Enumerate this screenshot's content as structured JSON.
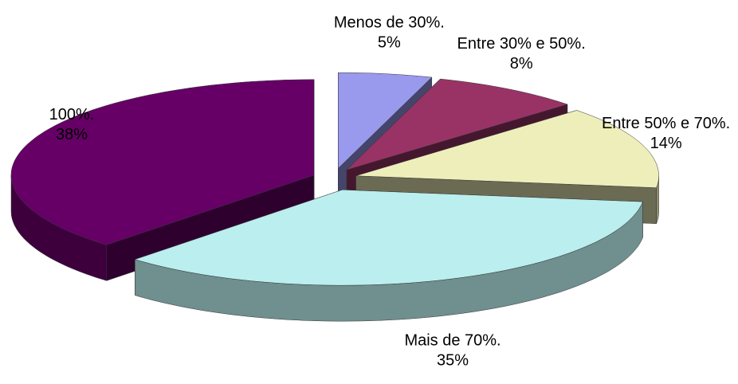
{
  "chart_data": {
    "type": "pie",
    "categories": [
      "Menos de 30%.",
      "Entre 30% e 50%.",
      "Entre 50% e 70%.",
      "Mais de 70%.",
      "100%."
    ],
    "values": [
      5,
      8,
      14,
      35,
      38
    ],
    "value_labels": [
      "5%",
      "8%",
      "14%",
      "35%",
      "38%"
    ],
    "colors": [
      "#9999ee",
      "#993366",
      "#eeeebb",
      "#bbeeee",
      "#660066"
    ]
  }
}
